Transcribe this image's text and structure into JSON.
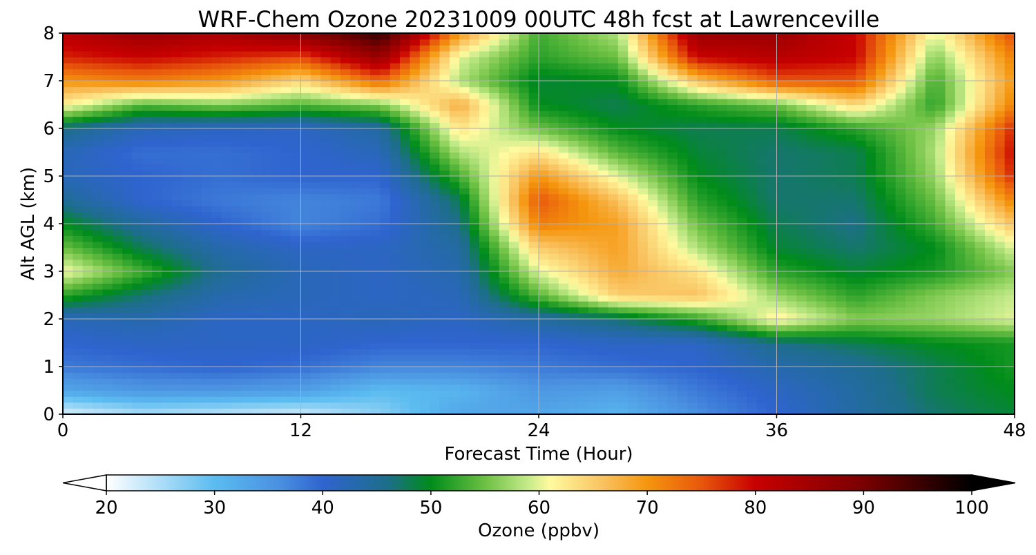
{
  "chart_data": {
    "type": "heatmap",
    "title": "WRF-Chem Ozone  20231009 00UTC 48h fcst at Lawrenceville",
    "xlabel": "Forecast Time (Hour)",
    "ylabel": "Alt AGL (km)",
    "xlim": [
      0,
      48
    ],
    "ylim": [
      0,
      8
    ],
    "xticks": [
      0,
      12,
      24,
      36,
      48
    ],
    "yticks": [
      0,
      1,
      2,
      3,
      4,
      5,
      6,
      7,
      8
    ],
    "grid": true,
    "x": [
      0,
      4,
      8,
      12,
      16,
      20,
      24,
      28,
      32,
      36,
      40,
      44,
      48
    ],
    "y": [
      0,
      0.5,
      1,
      1.5,
      2,
      2.5,
      3,
      3.5,
      4,
      4.5,
      5,
      5.5,
      6,
      6.5,
      7,
      7.5,
      8
    ],
    "z": [
      [
        22,
        25,
        24,
        23,
        27,
        33,
        33,
        31,
        36,
        40,
        44,
        47,
        49
      ],
      [
        33,
        35,
        35,
        34,
        30,
        31,
        35,
        34,
        38,
        41,
        44,
        48,
        50
      ],
      [
        38,
        39,
        40,
        39,
        37,
        37,
        38,
        39,
        40,
        43,
        45,
        48,
        51
      ],
      [
        40,
        41,
        41,
        41,
        40,
        40,
        40,
        41,
        41,
        46,
        48,
        50,
        51
      ],
      [
        42,
        43,
        41,
        41,
        42,
        41,
        44,
        47,
        52,
        62,
        56,
        57,
        60
      ],
      [
        52,
        47,
        43,
        42,
        41,
        42,
        54,
        65,
        66,
        57,
        52,
        56,
        59
      ],
      [
        61,
        53,
        45,
        42,
        41,
        43,
        60,
        68,
        63,
        52,
        49,
        51,
        56
      ],
      [
        55,
        48,
        43,
        41,
        41,
        44,
        65,
        69,
        58,
        49,
        47,
        50,
        60
      ],
      [
        50,
        44,
        40,
        37,
        39,
        46,
        72,
        69,
        55,
        48,
        46,
        53,
        66
      ],
      [
        45,
        40,
        38,
        37,
        38,
        48,
        75,
        66,
        52,
        47,
        47,
        55,
        72
      ],
      [
        42,
        40,
        39,
        40,
        40,
        53,
        70,
        60,
        50,
        47,
        48,
        57,
        78
      ],
      [
        42,
        39,
        39,
        40,
        42,
        58,
        63,
        54,
        49,
        47,
        48,
        58,
        80
      ],
      [
        46,
        42,
        41,
        41,
        44,
        63,
        55,
        50,
        48,
        48,
        52,
        57,
        78
      ],
      [
        62,
        54,
        56,
        54,
        56,
        68,
        50,
        48,
        52,
        55,
        64,
        52,
        72
      ],
      [
        70,
        72,
        70,
        64,
        74,
        58,
        49,
        50,
        66,
        75,
        75,
        53,
        70
      ],
      [
        78,
        80,
        78,
        76,
        86,
        60,
        52,
        55,
        80,
        82,
        80,
        56,
        72
      ],
      [
        82,
        86,
        84,
        88,
        96,
        70,
        53,
        58,
        86,
        86,
        80,
        60,
        76
      ]
    ],
    "colorbar": {
      "label": "Ozone  (ppbv)",
      "ticks": [
        20,
        30,
        40,
        50,
        60,
        70,
        80,
        90,
        100
      ],
      "min": 20,
      "max": 100,
      "extend": "both",
      "colorstops": [
        [
          20,
          "#ffffff"
        ],
        [
          30,
          "#5bbcf0"
        ],
        [
          36,
          "#4a90e0"
        ],
        [
          40,
          "#2f64cf"
        ],
        [
          46,
          "#1d6e8a"
        ],
        [
          50,
          "#008c1a"
        ],
        [
          55,
          "#6cc043"
        ],
        [
          59,
          "#c6eb8a"
        ],
        [
          61,
          "#fffaa0"
        ],
        [
          66,
          "#f9c15e"
        ],
        [
          70,
          "#f5960e"
        ],
        [
          75,
          "#e8570c"
        ],
        [
          80,
          "#c80000"
        ],
        [
          90,
          "#7a0000"
        ],
        [
          100,
          "#000000"
        ]
      ]
    }
  }
}
